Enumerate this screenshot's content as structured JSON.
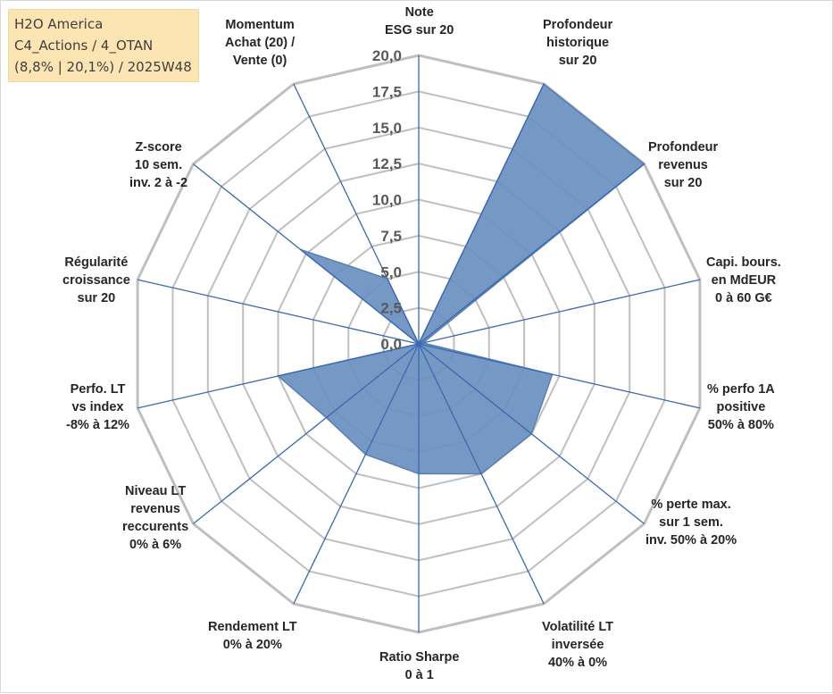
{
  "title_box": {
    "line1": "H2O America",
    "line2": "C4_Actions / 4_OTAN",
    "line3": "(8,8% | 20,1%) / 2025W48"
  },
  "colors": {
    "series_fill": "#6a8fbf",
    "series_stroke": "#5a7fb0",
    "spoke": "#3b68b0",
    "grid": "#bfbfbf",
    "tick_text": "#595959",
    "title_bg": "#fce4b3"
  },
  "chart_data": {
    "type": "radar",
    "scale": {
      "min": 0,
      "max": 20,
      "step": 2.5
    },
    "tick_labels": [
      "0,0",
      "2,5",
      "5,0",
      "7,5",
      "10,0",
      "12,5",
      "15,0",
      "17,5",
      "20,0"
    ],
    "axes": [
      {
        "lines": [
          "Note",
          "ESG sur 20"
        ]
      },
      {
        "lines": [
          "Profondeur",
          "historique",
          "sur 20"
        ]
      },
      {
        "lines": [
          "Profondeur",
          "revenus",
          "sur 20"
        ]
      },
      {
        "lines": [
          "Capi. bours.",
          "en MdEUR",
          "0 à 60 G€"
        ]
      },
      {
        "lines": [
          "% perfo 1A",
          "positive",
          "50% à 80%"
        ]
      },
      {
        "lines": [
          "% perte max.",
          "sur 1 sem.",
          "inv. 50% à 20%"
        ]
      },
      {
        "lines": [
          "Volatilité LT",
          "inversée",
          "40% à 0%"
        ]
      },
      {
        "lines": [
          "Ratio Sharpe",
          "0 à 1"
        ]
      },
      {
        "lines": [
          "Rendement LT",
          "0% à 20%"
        ]
      },
      {
        "lines": [
          "Niveau LT",
          "revenus",
          "reccurents",
          "0% à 6%"
        ]
      },
      {
        "lines": [
          "Perfo. LT",
          "vs index",
          "-8% à 12%"
        ]
      },
      {
        "lines": [
          "Régularité",
          "croissance",
          "sur 20"
        ]
      },
      {
        "lines": [
          "Z-score",
          "10 sem.",
          "inv. 2 à -2"
        ]
      },
      {
        "lines": [
          "Momentum",
          "Achat (20) /",
          "Vente (0)"
        ]
      }
    ],
    "series": [
      {
        "values": [
          0,
          20,
          20,
          0.3,
          9.5,
          10,
          10,
          9,
          8.5,
          8.2,
          10,
          0,
          10.5,
          5
        ]
      }
    ],
    "grid": true,
    "legend": "none"
  }
}
